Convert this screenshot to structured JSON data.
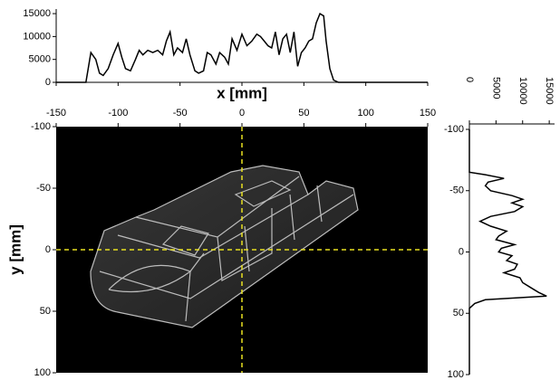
{
  "chart_data": [
    {
      "type": "line",
      "x": [
        -150,
        -126,
        -122,
        -118,
        -115,
        -112,
        -108,
        -104,
        -100,
        -97,
        -94,
        -90,
        -86,
        -83,
        -80,
        -76,
        -72,
        -68,
        -64,
        -61,
        -58,
        -55,
        -52,
        -48,
        -45,
        -42,
        -38,
        -35,
        -31,
        -28,
        -25,
        -21,
        -18,
        -14,
        -11,
        -8,
        -4,
        0,
        4,
        8,
        12,
        15,
        18,
        21,
        24,
        27,
        30,
        33,
        36,
        39,
        42,
        45,
        48,
        51,
        54,
        57,
        60,
        63,
        66,
        68,
        71,
        74,
        78,
        150
      ],
      "values": [
        0,
        0,
        6500,
        5000,
        2000,
        1500,
        3000,
        6000,
        8500,
        5500,
        3000,
        2500,
        5000,
        7000,
        6000,
        7000,
        6500,
        7000,
        6000,
        9000,
        11000,
        6000,
        7500,
        6500,
        9500,
        6000,
        2500,
        2000,
        2500,
        6500,
        6000,
        4000,
        6500,
        5500,
        4000,
        9500,
        7000,
        10500,
        8000,
        9000,
        10500,
        10000,
        9000,
        8000,
        7500,
        11000,
        6000,
        9500,
        10500,
        6500,
        11000,
        3500,
        6500,
        7500,
        9000,
        9500,
        13000,
        15000,
        14500,
        9000,
        3000,
        500,
        0,
        0
      ],
      "color": "#000000",
      "xlim": [
        -150,
        150
      ],
      "ylim": [
        0,
        16000
      ],
      "yticks": [
        0,
        5000,
        10000,
        15000
      ]
    },
    {
      "type": "image",
      "xlabel": "x [mm]",
      "ylabel": "y [mm]",
      "xlim": [
        -150,
        150
      ],
      "ylim": [
        -100,
        100
      ],
      "xticks": [
        -150,
        -100,
        -50,
        0,
        50,
        100,
        150
      ],
      "yticks": [
        -100,
        -50,
        0,
        50,
        100
      ],
      "crosshair": {
        "x": 0,
        "y": 0
      },
      "crosshair_color": "#e8e020"
    },
    {
      "type": "line",
      "orientation": "horizontal",
      "y": [
        -100,
        -65,
        -63,
        -60,
        -57,
        -54,
        -50,
        -46,
        -43,
        -40,
        -37,
        -33,
        -29,
        -25,
        -21,
        -17,
        -13,
        -10,
        -6,
        -3,
        0,
        3,
        7,
        10,
        14,
        17,
        21,
        25,
        29,
        33,
        36,
        39,
        42,
        46,
        100
      ],
      "values": [
        0,
        0,
        3000,
        6500,
        3500,
        3000,
        4000,
        8000,
        10000,
        8000,
        10000,
        8500,
        4000,
        2000,
        4000,
        7000,
        5500,
        5000,
        8500,
        6000,
        5500,
        8000,
        7000,
        9000,
        8500,
        6500,
        9500,
        10000,
        11500,
        13000,
        14500,
        3000,
        1000,
        0,
        0
      ],
      "color": "#000000",
      "xlim": [
        0,
        16000
      ],
      "xticks": [
        0,
        5000,
        10000,
        15000
      ],
      "ylim": [
        -100,
        100
      ],
      "yticks": [
        -100,
        -50,
        0,
        50,
        100
      ]
    }
  ]
}
